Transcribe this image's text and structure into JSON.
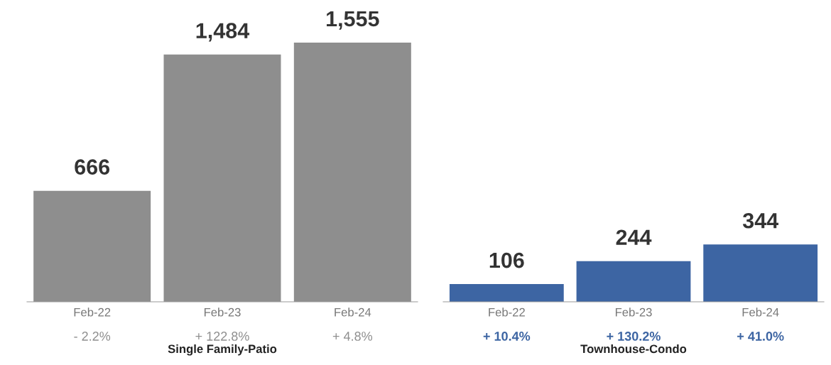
{
  "chart_data": [
    {
      "type": "bar",
      "xlabel": "Single Family-Patio",
      "categories": [
        "Feb-22",
        "Feb-23",
        "Feb-24"
      ],
      "series": [
        {
          "color": "#8e8e8e",
          "values": [
            666,
            1484,
            1555
          ],
          "value_labels": [
            "666",
            "1,484",
            "1,555"
          ]
        }
      ],
      "annotations": [
        "- 2.2%",
        "+ 122.8%",
        "+ 4.8%"
      ]
    },
    {
      "type": "bar",
      "xlabel": "Townhouse-Condo",
      "categories": [
        "Feb-22",
        "Feb-23",
        "Feb-24"
      ],
      "series": [
        {
          "color": "#3d65a3",
          "values": [
            106,
            244,
            344
          ],
          "value_labels": [
            "106",
            "244",
            "344"
          ]
        }
      ],
      "annotations": [
        "+ 10.4%",
        "+ 130.2%",
        "+ 41.0%"
      ]
    }
  ]
}
